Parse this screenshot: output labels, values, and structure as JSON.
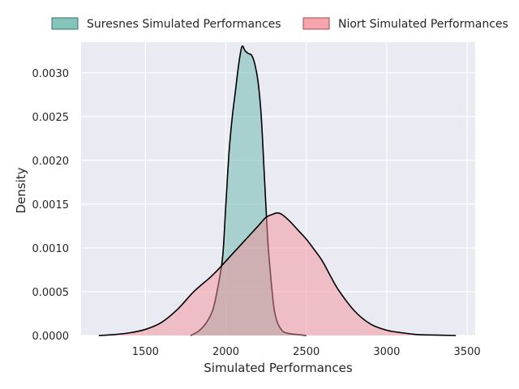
{
  "chart_data": {
    "type": "area",
    "xlabel": "Simulated Performances",
    "ylabel": "Density",
    "xlim": [
      1100,
      3550
    ],
    "ylim": [
      0,
      0.00335
    ],
    "xticks": [
      1500,
      2000,
      2500,
      3000,
      3500
    ],
    "yticks": [
      0.0,
      0.0005,
      0.001,
      0.0015,
      0.002,
      0.0025,
      0.003
    ],
    "xtick_labels": [
      "1500",
      "2000",
      "2500",
      "3000",
      "3500"
    ],
    "ytick_labels": [
      "0.0000",
      "0.0005",
      "0.0010",
      "0.0015",
      "0.0020",
      "0.0025",
      "0.0030"
    ],
    "grid": true,
    "legend_position": "top",
    "series": [
      {
        "name": "Suresnes Simulated Performances",
        "color": "#66b5aa",
        "x": [
          1780,
          1830,
          1880,
          1920,
          1950,
          1980,
          2000,
          2020,
          2040,
          2060,
          2080,
          2100,
          2120,
          2140,
          2160,
          2180,
          2200,
          2220,
          2240,
          2260,
          2280,
          2300,
          2320,
          2340,
          2360,
          2400,
          2450,
          2500
        ],
        "y": [
          0.0,
          5e-05,
          0.00015,
          0.0003,
          0.00055,
          0.0009,
          0.0015,
          0.0021,
          0.0025,
          0.0028,
          0.0031,
          0.0033,
          0.00325,
          0.00322,
          0.0032,
          0.0031,
          0.0029,
          0.0025,
          0.0018,
          0.0011,
          0.00065,
          0.0003,
          0.00015,
          8e-05,
          4e-05,
          2e-05,
          1e-05,
          0.0
        ]
      },
      {
        "name": "Niort Simulated Performances",
        "color": "#f48f97",
        "x": [
          1210,
          1300,
          1400,
          1500,
          1600,
          1700,
          1800,
          1900,
          1950,
          2000,
          2050,
          2100,
          2150,
          2200,
          2250,
          2300,
          2320,
          2350,
          2400,
          2450,
          2500,
          2550,
          2600,
          2650,
          2700,
          2800,
          2900,
          3000,
          3100,
          3200,
          3300,
          3430
        ],
        "y": [
          0.0,
          1e-05,
          3e-05,
          7e-05,
          0.00015,
          0.0003,
          0.0005,
          0.00066,
          0.00075,
          0.00085,
          0.00095,
          0.00105,
          0.00115,
          0.00125,
          0.00135,
          0.00139,
          0.0014,
          0.00138,
          0.0013,
          0.0012,
          0.0011,
          0.00098,
          0.00085,
          0.00068,
          0.00052,
          0.00028,
          0.00013,
          6e-05,
          3e-05,
          1e-05,
          5e-06,
          0.0
        ]
      }
    ]
  }
}
